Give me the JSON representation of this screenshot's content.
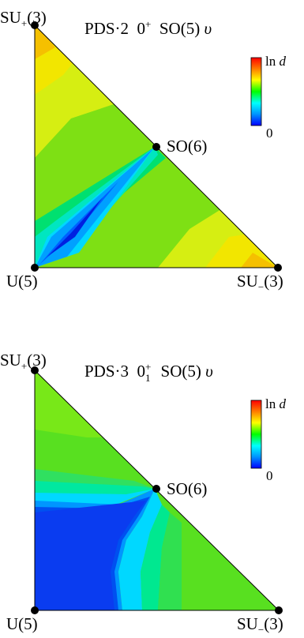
{
  "chart_data": [
    {
      "type": "heatmap",
      "geometry": "triangle",
      "title_parts": {
        "prefix": "PDS·2",
        "state": "0",
        "state_sup": "+",
        "state_sub": "",
        "group": "SO(5)",
        "quantity": "υ"
      },
      "vertices": {
        "top": {
          "base": "SU",
          "sub": "+",
          "suffix": "(3)"
        },
        "bottom_left": {
          "text": "U(5)"
        },
        "bottom_right": {
          "base": "SU",
          "sub": "−",
          "suffix": "(3)"
        },
        "edge_point": {
          "text": "SO(6)"
        }
      },
      "colorbar": {
        "max_label_prefix": "ln",
        "max_label_var": "d",
        "min_label": "0",
        "colors": [
          "#0000ff",
          "#0096ff",
          "#00ffff",
          "#00ff00",
          "#ffff00",
          "#ff8000",
          "#ff0000"
        ]
      }
    },
    {
      "type": "heatmap",
      "geometry": "triangle",
      "title_parts": {
        "prefix": "PDS·3",
        "state": "0",
        "state_sup": "+",
        "state_sub": "1",
        "group": "SO(5)",
        "quantity": "υ"
      },
      "vertices": {
        "top": {
          "base": "SU",
          "sub": "+",
          "suffix": "(3)"
        },
        "bottom_left": {
          "text": "U(5)"
        },
        "bottom_right": {
          "base": "SU",
          "sub": "−",
          "suffix": "(3)"
        },
        "edge_point": {
          "text": "SO(6)"
        }
      },
      "colorbar": {
        "max_label_prefix": "ln",
        "max_label_var": "d",
        "min_label": "0",
        "colors": [
          "#0000ff",
          "#0096ff",
          "#00ffff",
          "#00ff00",
          "#ffff00",
          "#ff8000",
          "#ff0000"
        ]
      }
    }
  ]
}
